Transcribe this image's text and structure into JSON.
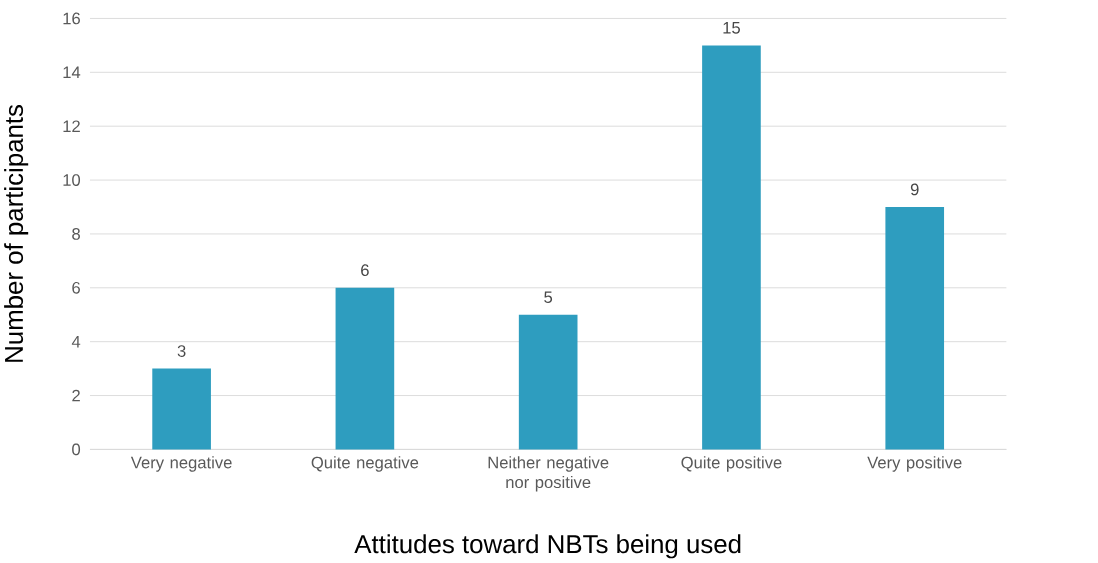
{
  "chart_data": {
    "type": "bar",
    "xlabel": "Attitudes toward NBTs being used",
    "ylabel": "Number of participants",
    "categories": [
      "Very negative",
      "Quite negative",
      "Neither negative nor positive",
      "Quite positive",
      "Very positive"
    ],
    "values": [
      3,
      6,
      5,
      15,
      9
    ],
    "color": "#2e9dbf",
    "ylim": [
      0,
      16
    ],
    "yticks": [
      0,
      2,
      4,
      6,
      8,
      10,
      12,
      14,
      16
    ],
    "grid": "y",
    "data_labels": true
  }
}
